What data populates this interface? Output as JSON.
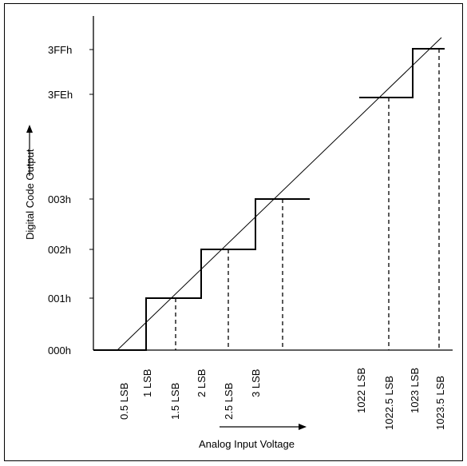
{
  "diagram": {
    "y_axis_title": "Digital Code Output",
    "x_axis_title": "Analog Input Voltage",
    "y_codes": [
      "000h",
      "001h",
      "002h",
      "003h",
      "3FEh",
      "3FFh"
    ],
    "x_ticks": [
      "0.5 LSB",
      "1 LSB",
      "1.5 LSB",
      "2 LSB",
      "2.5 LSB",
      "3 LSB",
      "1022 LSB",
      "1022.5 LSB",
      "1023 LSB",
      "1023.5 LSB"
    ]
  }
}
